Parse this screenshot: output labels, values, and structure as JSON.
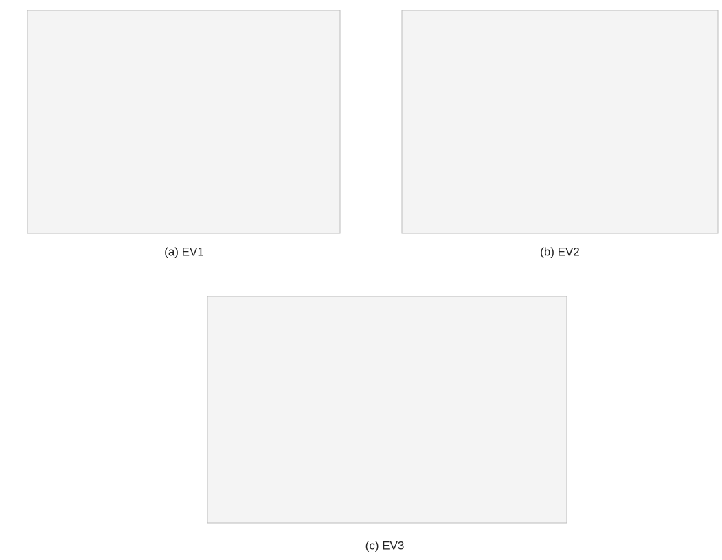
{
  "panels": [
    {
      "caption": "(a)  EV1"
    },
    {
      "caption": "(b)  EV2"
    },
    {
      "caption": "(c)  EV3"
    }
  ]
}
